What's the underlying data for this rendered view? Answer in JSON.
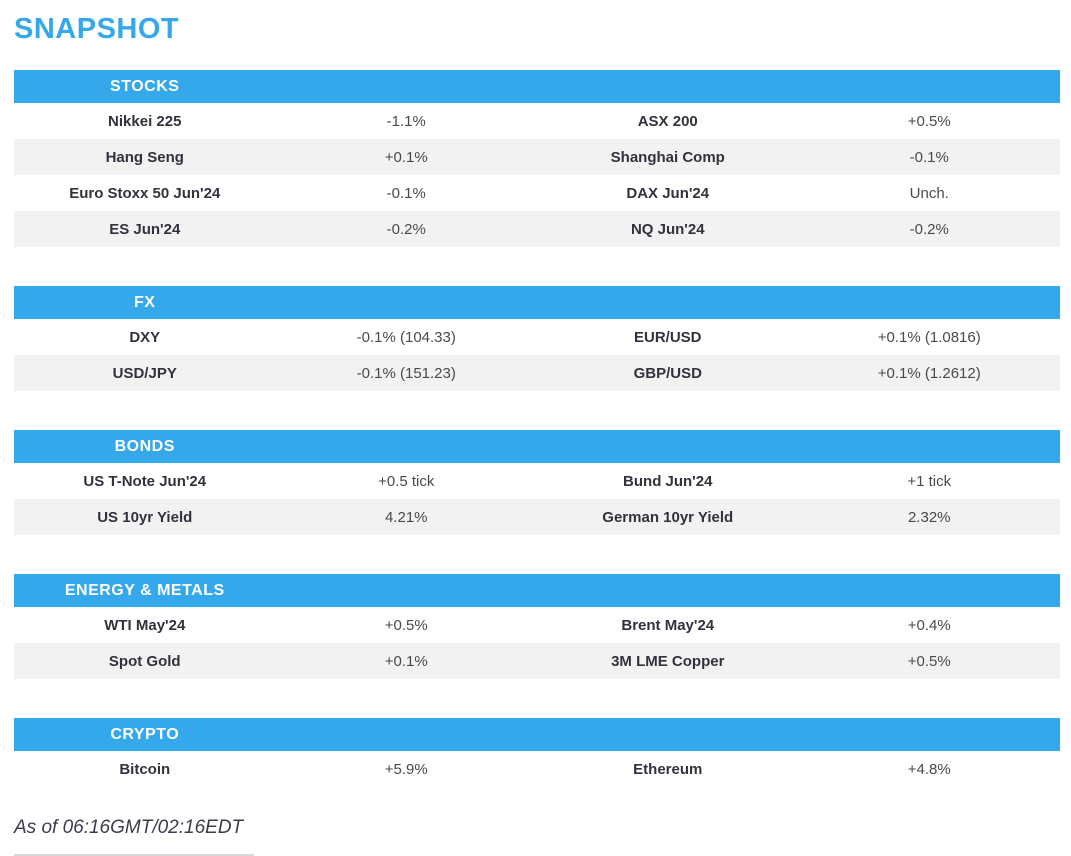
{
  "page_title": "SNAPSHOT",
  "colors": {
    "accent_blue": "#35a8ec",
    "alt_row_gray": "#f2f2f2",
    "label_text": "#32323e",
    "value_text": "#4a4a4a"
  },
  "sections": [
    {
      "id": "stocks",
      "header": "STOCKS",
      "rows": [
        [
          "Nikkei 225",
          "-1.1%",
          "ASX 200",
          "+0.5%"
        ],
        [
          "Hang Seng",
          "+0.1%",
          "Shanghai Comp",
          "-0.1%"
        ],
        [
          "Euro Stoxx 50 Jun'24",
          "-0.1%",
          "DAX Jun'24",
          "Unch."
        ],
        [
          "ES Jun'24",
          "-0.2%",
          "NQ Jun'24",
          "-0.2%"
        ]
      ]
    },
    {
      "id": "fx",
      "header": "FX",
      "rows": [
        [
          "DXY",
          "-0.1% (104.33)",
          "EUR/USD",
          "+0.1% (1.0816)"
        ],
        [
          "USD/JPY",
          "-0.1% (151.23)",
          "GBP/USD",
          "+0.1% (1.2612)"
        ]
      ]
    },
    {
      "id": "bonds",
      "header": "BONDS",
      "rows": [
        [
          "US T-Note Jun'24",
          "+0.5 tick",
          "Bund Jun'24",
          "+1 tick"
        ],
        [
          "US 10yr Yield",
          "4.21%",
          "German 10yr Yield",
          "2.32%"
        ]
      ]
    },
    {
      "id": "energy-metals",
      "header": "ENERGY & METALS",
      "rows": [
        [
          "WTI May'24",
          "+0.5%",
          "Brent May'24",
          "+0.4%"
        ],
        [
          "Spot Gold",
          "+0.1%",
          "3M LME Copper",
          "+0.5%"
        ]
      ]
    },
    {
      "id": "crypto",
      "header": "CRYPTO",
      "rows": [
        [
          "Bitcoin",
          "+5.9%",
          "Ethereum",
          "+4.8%"
        ]
      ]
    }
  ],
  "footer": {
    "as_of": "As of 06:16GMT/02:16EDT"
  }
}
